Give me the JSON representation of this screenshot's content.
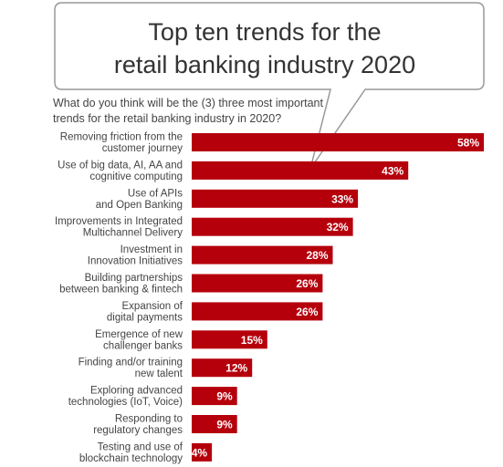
{
  "title": {
    "line1": "Top ten trends for the",
    "line2": "retail banking industry 2020"
  },
  "question": {
    "line1": "What do you think will be the (3) three most important",
    "line2": "trends for the retail banking industry in 2020?"
  },
  "colors": {
    "bar": "#b5000c",
    "callout_border": "#999999",
    "text": "#444444"
  },
  "chart_data": {
    "type": "bar",
    "orientation": "horizontal",
    "categories": [
      [
        "Removing friction from the",
        "customer journey"
      ],
      [
        "Use of big data, AI, AA and",
        "cognitive computing"
      ],
      [
        "Use of APIs",
        "and Open Banking"
      ],
      [
        "Improvements in Integrated",
        "Multichannel Delivery"
      ],
      [
        "Investment in",
        "Innovation Initiatives"
      ],
      [
        "Building partnerships",
        "between banking & fintech"
      ],
      [
        "Expansion of",
        "digital payments"
      ],
      [
        "Emergence of new",
        "challenger banks"
      ],
      [
        "Finding and/or training",
        "new talent"
      ],
      [
        "Exploring advanced",
        "technologies (IoT, Voice)"
      ],
      [
        "Responding to",
        "regulatory changes"
      ],
      [
        "Testing and use of",
        "blockchain technology"
      ]
    ],
    "values": [
      58,
      43,
      33,
      32,
      28,
      26,
      26,
      15,
      12,
      9,
      9,
      4
    ],
    "data_labels": [
      "58%",
      "43%",
      "33%",
      "32%",
      "28%",
      "26%",
      "26%",
      "15%",
      "12%",
      "9%",
      "9%",
      "4%"
    ],
    "unit": "%",
    "grid": false,
    "legend": "none"
  }
}
